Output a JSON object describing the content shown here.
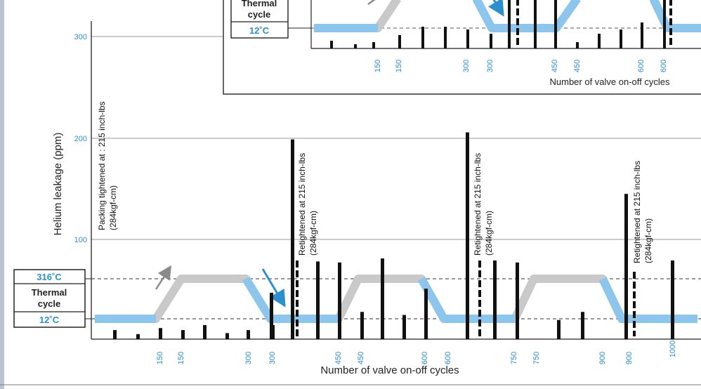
{
  "chart_data": [
    {
      "type": "bar",
      "panel": "main",
      "xlabel": "Number of valve on-off cycles",
      "ylabel": "Helium leakage (ppm)",
      "ylim": [
        0,
        300
      ],
      "yticks": [
        "300",
        "200",
        "100"
      ],
      "xtick_labels": [
        "150",
        "150",
        "300",
        "300",
        "450",
        "450",
        "600",
        "600",
        "750",
        "750",
        "900",
        "900",
        "1000"
      ],
      "values": [
        9,
        5,
        11,
        9,
        14,
        6,
        9,
        14,
        46,
        198,
        77,
        76,
        27,
        80,
        24,
        50,
        205,
        78,
        76,
        19,
        27,
        144,
        78
      ],
      "thermal_cycle": {
        "high": "316˚C",
        "label": "Thermal cycle",
        "low": "12˚C"
      },
      "annotations": [
        "Packing tightened at : 215 inch-lbs (284kgf-cm)",
        "Retightened at 215 inch-lbs (284kgf-cm)",
        "Retightened at 215 inch-lbs (284kgf-cm)",
        "Retightened at 215 inch-lbs (284kgf-cm)"
      ]
    },
    {
      "type": "bar",
      "panel": "inset",
      "xlabel": "Number of valve on-off cycles",
      "xtick_labels": [
        "150",
        "150",
        "300",
        "300",
        "450",
        "450",
        "600",
        "600"
      ],
      "thermal_cycle": {
        "label": "Thermal cycle",
        "low": "12˚C"
      }
    }
  ],
  "colors": {
    "tick": "#2b8fd0",
    "blue_band": "#8cc6ec",
    "gray_band": "#cfcfcf",
    "bar": "#111111"
  }
}
